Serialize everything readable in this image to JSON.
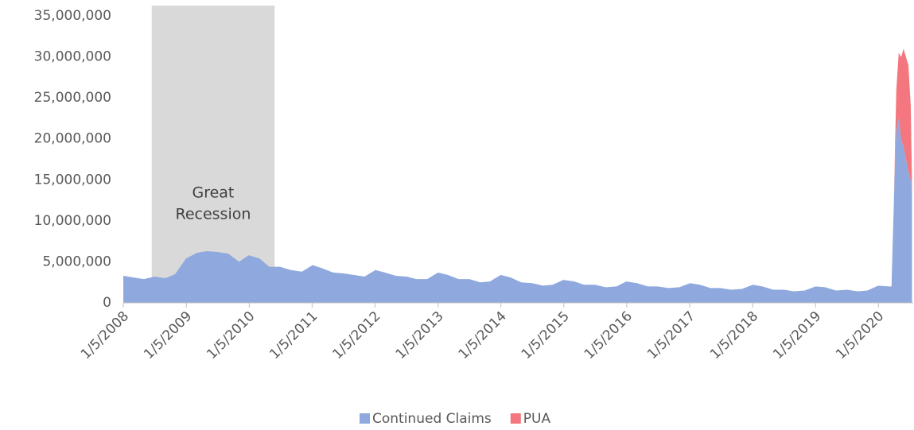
{
  "chart_data": {
    "type": "stacked_area",
    "annotation": [
      "Great",
      "Recession"
    ],
    "shade": {
      "start": "2008-06-18",
      "end": "2010-06-01",
      "color": "#d9d9d9"
    },
    "x": [
      "2008-01-05",
      "2008-03-01",
      "2008-05-03",
      "2008-07-05",
      "2008-09-06",
      "2008-11-01",
      "2009-01-03",
      "2009-03-07",
      "2009-05-02",
      "2009-07-04",
      "2009-09-05",
      "2009-11-07",
      "2010-01-02",
      "2010-03-06",
      "2010-05-01",
      "2010-07-03",
      "2010-09-04",
      "2010-11-06",
      "2011-01-08",
      "2011-03-05",
      "2011-05-07",
      "2011-07-02",
      "2011-09-03",
      "2011-11-05",
      "2012-01-07",
      "2012-03-03",
      "2012-05-05",
      "2012-07-07",
      "2012-09-01",
      "2012-11-03",
      "2013-01-05",
      "2013-03-02",
      "2013-05-04",
      "2013-07-06",
      "2013-09-07",
      "2013-11-02",
      "2014-01-04",
      "2014-03-01",
      "2014-05-03",
      "2014-07-05",
      "2014-09-06",
      "2014-11-01",
      "2015-01-03",
      "2015-03-07",
      "2015-05-02",
      "2015-07-04",
      "2015-09-05",
      "2015-11-07",
      "2016-01-02",
      "2016-03-05",
      "2016-05-07",
      "2016-07-02",
      "2016-09-03",
      "2016-11-05",
      "2017-01-07",
      "2017-03-04",
      "2017-05-06",
      "2017-07-01",
      "2017-09-02",
      "2017-11-04",
      "2018-01-06",
      "2018-03-03",
      "2018-05-05",
      "2018-07-07",
      "2018-09-01",
      "2018-11-03",
      "2019-01-05",
      "2019-03-02",
      "2019-05-04",
      "2019-07-06",
      "2019-09-07",
      "2019-11-02",
      "2020-01-04",
      "2020-03-07",
      "2020-03-21",
      "2020-03-28",
      "2020-04-04",
      "2020-04-11",
      "2020-04-18",
      "2020-05-02",
      "2020-05-16",
      "2020-05-30",
      "2020-06-13",
      "2020-06-27",
      "2020-07-11",
      "2020-07-18"
    ],
    "series": [
      {
        "name": "Continued Claims",
        "color": "#8fa9de",
        "values": [
          3300000,
          3100000,
          2900000,
          3200000,
          3000000,
          3500000,
          5400000,
          6100000,
          6300000,
          6200000,
          6000000,
          5000000,
          5800000,
          5400000,
          4400000,
          4400000,
          4000000,
          3800000,
          4600000,
          4200000,
          3700000,
          3600000,
          3400000,
          3200000,
          4000000,
          3700000,
          3300000,
          3200000,
          2900000,
          2900000,
          3700000,
          3400000,
          2900000,
          2900000,
          2500000,
          2600000,
          3400000,
          3100000,
          2500000,
          2400000,
          2100000,
          2200000,
          2800000,
          2600000,
          2200000,
          2200000,
          1900000,
          2000000,
          2600000,
          2400000,
          2000000,
          2000000,
          1800000,
          1900000,
          2400000,
          2200000,
          1800000,
          1800000,
          1600000,
          1700000,
          2200000,
          2000000,
          1600000,
          1600000,
          1400000,
          1500000,
          2000000,
          1900000,
          1500000,
          1600000,
          1400000,
          1500000,
          2100000,
          2000000,
          2000000,
          7400000,
          12400000,
          18000000,
          21000000,
          22500000,
          20000000,
          19000000,
          17500000,
          16000000,
          15000000,
          13500000
        ]
      },
      {
        "name": "PUA",
        "color": "#f4777f",
        "values": [
          0,
          0,
          0,
          0,
          0,
          0,
          0,
          0,
          0,
          0,
          0,
          0,
          0,
          0,
          0,
          0,
          0,
          0,
          0,
          0,
          0,
          0,
          0,
          0,
          0,
          0,
          0,
          0,
          0,
          0,
          0,
          0,
          0,
          0,
          0,
          0,
          0,
          0,
          0,
          0,
          0,
          0,
          0,
          0,
          0,
          0,
          0,
          0,
          0,
          0,
          0,
          0,
          0,
          0,
          0,
          0,
          0,
          0,
          0,
          0,
          0,
          0,
          0,
          0,
          0,
          0,
          0,
          0,
          0,
          0,
          0,
          0,
          0,
          0,
          0,
          0,
          0,
          1500000,
          5000000,
          8000000,
          10000000,
          12000000,
          12500000,
          13000000,
          9000000,
          1000000
        ]
      }
    ],
    "xlim": [
      "2008-01-05",
      "2020-07-25"
    ],
    "xticks": [
      {
        "value": "2008-01-05",
        "label": "1/5/2008"
      },
      {
        "value": "2009-01-05",
        "label": "1/5/2009"
      },
      {
        "value": "2010-01-05",
        "label": "1/5/2010"
      },
      {
        "value": "2011-01-05",
        "label": "1/5/2011"
      },
      {
        "value": "2012-01-05",
        "label": "1/5/2012"
      },
      {
        "value": "2013-01-05",
        "label": "1/5/2013"
      },
      {
        "value": "2014-01-05",
        "label": "1/5/2014"
      },
      {
        "value": "2015-01-05",
        "label": "1/5/2015"
      },
      {
        "value": "2016-01-05",
        "label": "1/5/2016"
      },
      {
        "value": "2017-01-05",
        "label": "1/5/2017"
      },
      {
        "value": "2018-01-05",
        "label": "1/5/2018"
      },
      {
        "value": "2019-01-05",
        "label": "1/5/2019"
      },
      {
        "value": "2020-01-05",
        "label": "1/5/2020"
      }
    ],
    "ylim": [
      0,
      35000000
    ],
    "yticks": [
      0,
      {
        "value": 5000000,
        "label": "5,000,000"
      },
      {
        "value": 10000000,
        "label": "10,000,000"
      },
      {
        "value": 15000000,
        "label": "15,000,000"
      },
      {
        "value": 20000000,
        "label": "20,000,000"
      },
      {
        "value": 25000000,
        "label": "25,000,000"
      },
      {
        "value": 30000000,
        "label": "30,000,000"
      },
      {
        "value": 35000000,
        "label": "35,000,000"
      }
    ],
    "legend": "bottom"
  }
}
